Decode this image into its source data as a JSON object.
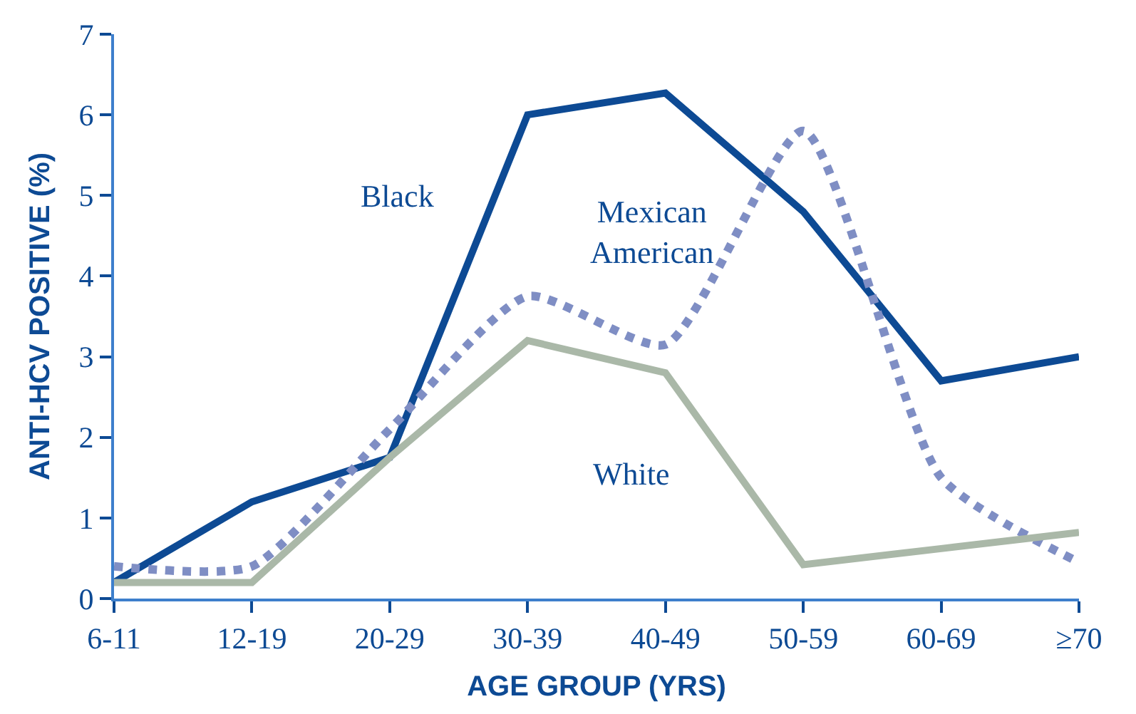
{
  "chart_data": {
    "type": "line",
    "xlabel": "AGE GROUP (YRS)",
    "ylabel": "ANTI-HCV POSITIVE (%)",
    "categories": [
      "6-11",
      "12-19",
      "20-29",
      "30-39",
      "40-49",
      "50-59",
      "60-69",
      "≥70"
    ],
    "series": [
      {
        "name": "Black",
        "color": "#0d4a94",
        "line_style": "solid",
        "values": [
          0.2,
          1.2,
          1.75,
          6.0,
          6.27,
          4.8,
          2.7,
          3.0
        ]
      },
      {
        "name": "Mexican\nAmerican",
        "color": "#7f8ec4",
        "line_style": "dotted",
        "values": [
          0.4,
          0.4,
          2.1,
          3.75,
          3.15,
          5.8,
          1.5,
          0.45
        ]
      },
      {
        "name": "White",
        "color": "#aab8a8",
        "line_style": "solid",
        "values": [
          0.2,
          0.2,
          1.75,
          3.2,
          2.8,
          0.42,
          0.62,
          0.82
        ]
      }
    ],
    "ylim": [
      0,
      7
    ],
    "yticks": [
      0,
      1,
      2,
      3,
      4,
      5,
      6,
      7
    ],
    "legend": false,
    "marker": "none"
  }
}
